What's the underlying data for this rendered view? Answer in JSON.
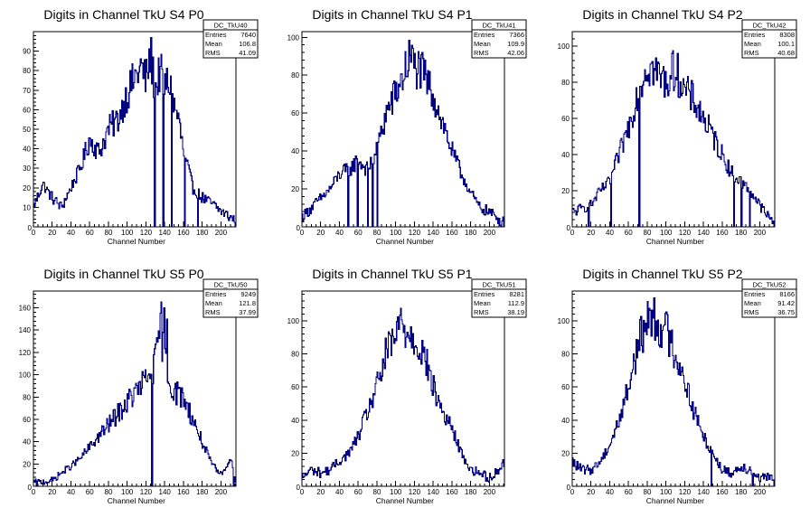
{
  "chart_data": [
    {
      "type": "histogram",
      "title": "Digits in Channel TkU S4 P0",
      "xlabel": "Channel Number",
      "xlim": [
        0,
        216
      ],
      "ylim": [
        0,
        100
      ],
      "xticks": [
        0,
        20,
        40,
        60,
        80,
        100,
        120,
        140,
        160,
        180,
        200
      ],
      "yticks": [
        10,
        20,
        30,
        40,
        50,
        60,
        70,
        80,
        90
      ],
      "stats": {
        "name": "DC_TkU40",
        "entries": "7640",
        "mean": "106.8",
        "rms": "41.09"
      },
      "spikes": [
        [
          129,
          0
        ],
        [
          138,
          0
        ],
        [
          147,
          0
        ],
        [
          161,
          0
        ],
        [
          175,
          0
        ]
      ],
      "points": [
        [
          0,
          10
        ],
        [
          10,
          22
        ],
        [
          20,
          15
        ],
        [
          30,
          10
        ],
        [
          40,
          20
        ],
        [
          50,
          30
        ],
        [
          60,
          45
        ],
        [
          70,
          38
        ],
        [
          80,
          50
        ],
        [
          90,
          55
        ],
        [
          100,
          68
        ],
        [
          110,
          78
        ],
        [
          115,
          82
        ],
        [
          120,
          75
        ],
        [
          125,
          88
        ],
        [
          130,
          70
        ],
        [
          135,
          80
        ],
        [
          140,
          72
        ],
        [
          145,
          74
        ],
        [
          150,
          62
        ],
        [
          155,
          55
        ],
        [
          160,
          38
        ],
        [
          165,
          30
        ],
        [
          170,
          20
        ],
        [
          180,
          15
        ],
        [
          190,
          12
        ],
        [
          200,
          8
        ],
        [
          210,
          5
        ],
        [
          216,
          3
        ]
      ]
    },
    {
      "type": "histogram",
      "title": "Digits in Channel TkU S4 P1",
      "xlabel": "Channel Number",
      "xlim": [
        0,
        216
      ],
      "ylim": [
        0,
        103
      ],
      "xticks": [
        0,
        20,
        40,
        60,
        80,
        100,
        120,
        140,
        160,
        180,
        200
      ],
      "yticks": [
        20,
        40,
        60,
        80,
        100
      ],
      "stats": {
        "name": "DC_TkU41",
        "entries": "7366",
        "mean": "109.9",
        "rms": "42.06"
      },
      "spikes": [
        [
          49,
          0
        ],
        [
          59,
          0
        ],
        [
          70,
          0
        ],
        [
          75,
          0
        ],
        [
          80,
          0
        ]
      ],
      "points": [
        [
          0,
          5
        ],
        [
          10,
          10
        ],
        [
          20,
          15
        ],
        [
          30,
          20
        ],
        [
          40,
          28
        ],
        [
          50,
          30
        ],
        [
          60,
          35
        ],
        [
          70,
          30
        ],
        [
          80,
          40
        ],
        [
          90,
          60
        ],
        [
          100,
          70
        ],
        [
          110,
          82
        ],
        [
          115,
          90
        ],
        [
          120,
          85
        ],
        [
          130,
          80
        ],
        [
          140,
          70
        ],
        [
          150,
          55
        ],
        [
          160,
          40
        ],
        [
          170,
          28
        ],
        [
          180,
          18
        ],
        [
          190,
          10
        ],
        [
          200,
          8
        ],
        [
          210,
          4
        ],
        [
          216,
          2
        ]
      ]
    },
    {
      "type": "histogram",
      "title": "Digits in Channel TkU S4 P2",
      "xlabel": "Channel Number",
      "xlim": [
        0,
        216
      ],
      "ylim": [
        0,
        108
      ],
      "xticks": [
        0,
        20,
        40,
        60,
        80,
        100,
        120,
        140,
        160,
        180,
        200
      ],
      "yticks": [
        20,
        40,
        60,
        80,
        100
      ],
      "stats": {
        "name": "DC_TkU42",
        "entries": "8308",
        "mean": "100.1",
        "rms": "40.68"
      },
      "spikes": [
        [
          17,
          0
        ],
        [
          41,
          0
        ],
        [
          71,
          0
        ],
        [
          172,
          0
        ],
        [
          180,
          0
        ],
        [
          189,
          0
        ]
      ],
      "points": [
        [
          0,
          8
        ],
        [
          10,
          10
        ],
        [
          20,
          12
        ],
        [
          30,
          20
        ],
        [
          40,
          25
        ],
        [
          50,
          40
        ],
        [
          60,
          55
        ],
        [
          70,
          75
        ],
        [
          80,
          90
        ],
        [
          90,
          85
        ],
        [
          100,
          80
        ],
        [
          110,
          88
        ],
        [
          120,
          75
        ],
        [
          130,
          70
        ],
        [
          140,
          60
        ],
        [
          150,
          50
        ],
        [
          160,
          40
        ],
        [
          170,
          30
        ],
        [
          180,
          25
        ],
        [
          190,
          20
        ],
        [
          200,
          12
        ],
        [
          210,
          5
        ],
        [
          216,
          2
        ]
      ]
    },
    {
      "type": "histogram",
      "title": "Digits in Channel TkU S5 P0",
      "xlabel": "Channel Number",
      "xlim": [
        0,
        216
      ],
      "ylim": [
        0,
        175
      ],
      "xticks": [
        0,
        20,
        40,
        60,
        80,
        100,
        120,
        140,
        160,
        180,
        200
      ],
      "yticks": [
        20,
        40,
        60,
        80,
        100,
        120,
        140,
        160
      ],
      "stats": {
        "name": "DC_TkU50",
        "entries": "9249",
        "mean": "121.8",
        "rms": "37.99"
      },
      "spikes": [
        [
          126,
          0
        ],
        [
          136,
          165
        ],
        [
          139,
          160
        ],
        [
          142,
          150
        ],
        [
          213,
          0
        ]
      ],
      "points": [
        [
          0,
          3
        ],
        [
          10,
          4
        ],
        [
          20,
          5
        ],
        [
          30,
          12
        ],
        [
          40,
          18
        ],
        [
          50,
          25
        ],
        [
          60,
          35
        ],
        [
          70,
          45
        ],
        [
          80,
          55
        ],
        [
          90,
          65
        ],
        [
          100,
          75
        ],
        [
          110,
          85
        ],
        [
          120,
          95
        ],
        [
          125,
          100
        ],
        [
          130,
          110
        ],
        [
          135,
          140
        ],
        [
          140,
          120
        ],
        [
          145,
          95
        ],
        [
          150,
          85
        ],
        [
          160,
          80
        ],
        [
          170,
          60
        ],
        [
          180,
          40
        ],
        [
          190,
          20
        ],
        [
          200,
          10
        ],
        [
          210,
          25
        ],
        [
          216,
          5
        ]
      ]
    },
    {
      "type": "histogram",
      "title": "Digits in Channel TkU S5 P1",
      "xlabel": "Channel Number",
      "xlim": [
        0,
        216
      ],
      "ylim": [
        0,
        118
      ],
      "xticks": [
        0,
        20,
        40,
        60,
        80,
        100,
        120,
        140,
        160,
        180,
        200
      ],
      "yticks": [
        20,
        40,
        60,
        80,
        100
      ],
      "stats": {
        "name": "DC_TkU51",
        "entries": "8281",
        "mean": "112.9",
        "rms": "38.19"
      },
      "spikes": [],
      "points": [
        [
          0,
          5
        ],
        [
          10,
          10
        ],
        [
          20,
          8
        ],
        [
          30,
          10
        ],
        [
          40,
          15
        ],
        [
          50,
          20
        ],
        [
          60,
          30
        ],
        [
          70,
          45
        ],
        [
          80,
          60
        ],
        [
          90,
          80
        ],
        [
          100,
          90
        ],
        [
          105,
          100
        ],
        [
          110,
          95
        ],
        [
          115,
          92
        ],
        [
          120,
          90
        ],
        [
          130,
          80
        ],
        [
          140,
          60
        ],
        [
          150,
          45
        ],
        [
          160,
          35
        ],
        [
          170,
          20
        ],
        [
          180,
          10
        ],
        [
          190,
          8
        ],
        [
          200,
          5
        ],
        [
          210,
          10
        ],
        [
          216,
          15
        ]
      ]
    },
    {
      "type": "histogram",
      "title": "Digits in Channel TkU S5 P2",
      "xlabel": "Channel Number",
      "xlim": [
        0,
        216
      ],
      "ylim": [
        0,
        118
      ],
      "xticks": [
        0,
        20,
        40,
        60,
        80,
        100,
        120,
        140,
        160,
        180,
        200
      ],
      "yticks": [
        20,
        40,
        60,
        80,
        100
      ],
      "stats": {
        "name": "DC_TkU52",
        "entries": "8166",
        "mean": "91.42",
        "rms": "36.75"
      },
      "spikes": [
        [
          148,
          0
        ],
        [
          192,
          0
        ]
      ],
      "points": [
        [
          0,
          15
        ],
        [
          10,
          10
        ],
        [
          20,
          10
        ],
        [
          30,
          15
        ],
        [
          40,
          25
        ],
        [
          50,
          40
        ],
        [
          60,
          60
        ],
        [
          70,
          85
        ],
        [
          80,
          100
        ],
        [
          85,
          105
        ],
        [
          90,
          98
        ],
        [
          100,
          95
        ],
        [
          110,
          80
        ],
        [
          120,
          65
        ],
        [
          130,
          45
        ],
        [
          140,
          30
        ],
        [
          150,
          20
        ],
        [
          160,
          10
        ],
        [
          170,
          8
        ],
        [
          180,
          12
        ],
        [
          190,
          10
        ],
        [
          200,
          5
        ],
        [
          210,
          5
        ],
        [
          216,
          3
        ]
      ]
    }
  ]
}
